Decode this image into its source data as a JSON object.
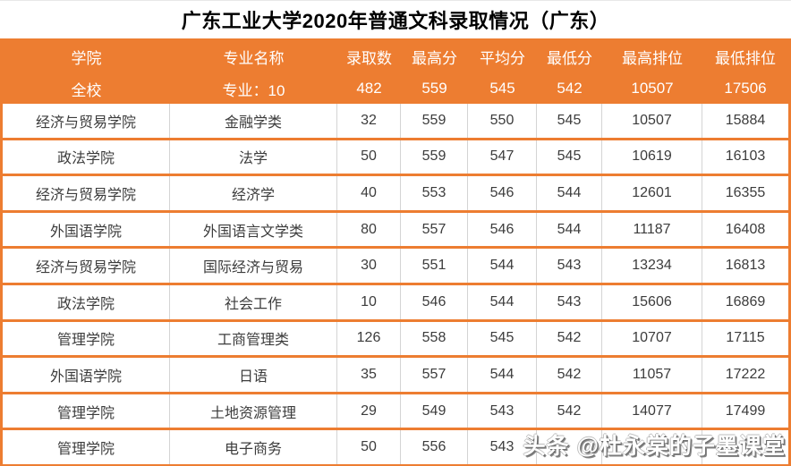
{
  "title": "广东工业大学2020年普通文科录取情况（广东）",
  "colors": {
    "header_orange": "#ED7D31",
    "row_border_orange": "#ED7D31",
    "grid_line_gray": "#D4D4D4",
    "body_text": "#3C3C3C",
    "header_text": "#FFFFFF",
    "title_text": "#000000"
  },
  "watermark": {
    "text": "头条 @杜永棠的子墨课堂"
  },
  "chart_data": {
    "type": "table",
    "title": "广东工业大学2020年普通文科录取情况（广东）",
    "columns": [
      "学院",
      "专业名称",
      "录取数",
      "最高分",
      "平均分",
      "最低分",
      "最高排位",
      "最低排位"
    ],
    "summary_row": [
      "全校",
      "专业：10",
      "482",
      "559",
      "545",
      "542",
      "10507",
      "17506"
    ],
    "rows": [
      [
        "经济与贸易学院",
        "金融学类",
        "32",
        "559",
        "550",
        "545",
        "10507",
        "15884"
      ],
      [
        "政法学院",
        "法学",
        "50",
        "559",
        "547",
        "545",
        "10619",
        "16103"
      ],
      [
        "经济与贸易学院",
        "经济学",
        "40",
        "553",
        "546",
        "544",
        "12601",
        "16355"
      ],
      [
        "外国语学院",
        "外国语言文学类",
        "80",
        "557",
        "546",
        "544",
        "11187",
        "16408"
      ],
      [
        "经济与贸易学院",
        "国际经济与贸易",
        "30",
        "551",
        "544",
        "543",
        "13234",
        "16813"
      ],
      [
        "政法学院",
        "社会工作",
        "10",
        "546",
        "544",
        "543",
        "15606",
        "16869"
      ],
      [
        "管理学院",
        "工商管理类",
        "126",
        "558",
        "545",
        "542",
        "10707",
        "17115"
      ],
      [
        "外国语学院",
        "日语",
        "35",
        "557",
        "544",
        "542",
        "11057",
        "17222"
      ],
      [
        "管理学院",
        "土地资源管理",
        "29",
        "549",
        "543",
        "542",
        "14077",
        "17499"
      ],
      [
        "管理学院",
        "电子商务",
        "50",
        "556",
        "543",
        "",
        "",
        ""
      ]
    ]
  }
}
